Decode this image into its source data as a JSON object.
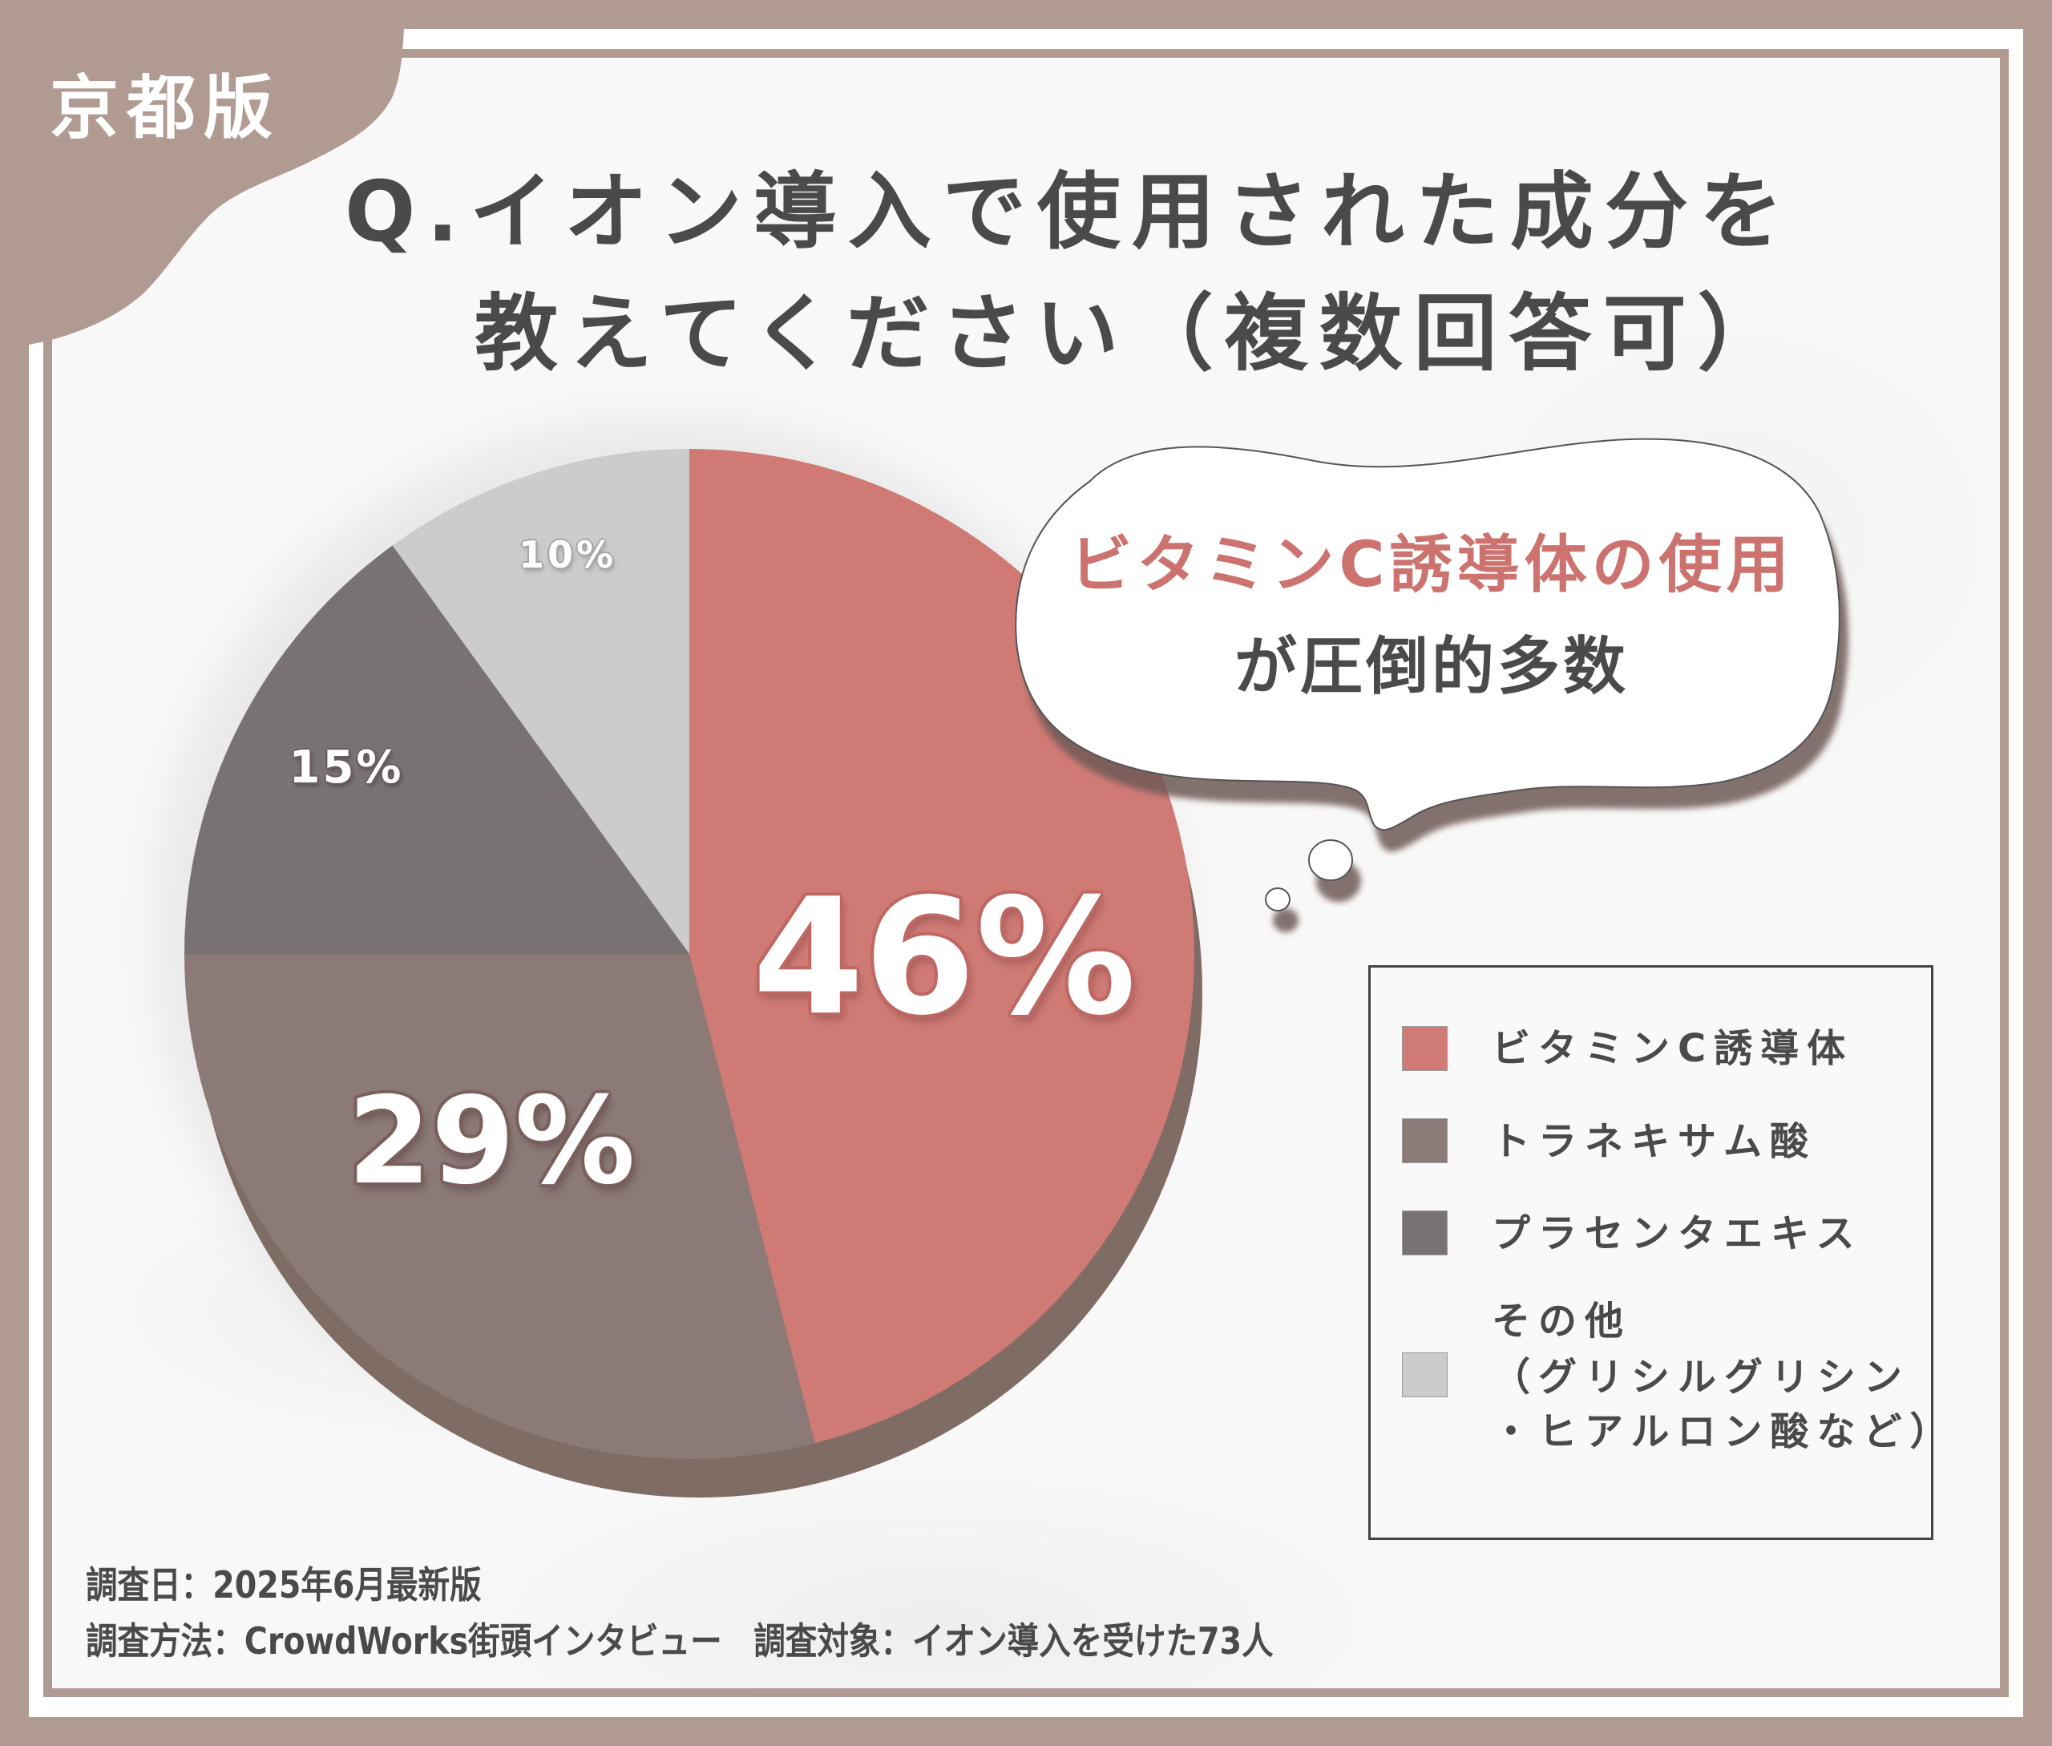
{
  "badge": {
    "label": "京都版"
  },
  "title": {
    "line1": "Q.イオン導入で使用された成分を",
    "line2": "教えてください（複数回答可）"
  },
  "callout": {
    "line1": "ビタミンC誘導体の使用",
    "line2": "が圧倒的多数"
  },
  "colors": {
    "frame": "#B09A92",
    "vitamin_c": "#CF7A75",
    "tranexamic": "#8C7A77",
    "placenta": "#787372",
    "other": "#CCCCCC",
    "accent_text": "#CC7370",
    "body_text": "#4A4A4A"
  },
  "legend": {
    "items": [
      {
        "label": "ビタミンC誘導体",
        "color": "#CF7A75"
      },
      {
        "label": "トラネキサム酸",
        "color": "#8C7A77"
      },
      {
        "label": "プラセンタエキス",
        "color": "#787372"
      },
      {
        "label_lines": [
          "その他",
          "（グリシルグリシン",
          "・ヒアルロン酸など）"
        ],
        "color": "#CCCCCC"
      }
    ]
  },
  "slice_labels": {
    "vitamin_c": "46%",
    "tranexamic": "29%",
    "placenta": "15%",
    "other": "10%"
  },
  "footer": {
    "line1": "調査日：2025年6月最新版",
    "line2": "調査方法：CrowdWorks街頭インタビュー　調査対象：イオン導入を受けた73人"
  },
  "chart_data": {
    "type": "pie",
    "title": "Q.イオン導入で使用された成分を教えてください（複数回答可）",
    "categories": [
      "ビタミンC誘導体",
      "トラネキサム酸",
      "プラセンタエキス",
      "その他（グリシルグリシン・ヒアルロン酸など）"
    ],
    "values": [
      46,
      29,
      15,
      10
    ],
    "unit": "%",
    "colors": [
      "#CF7A75",
      "#8C7A77",
      "#787372",
      "#CCCCCC"
    ],
    "start_angle": "12 o'clock, clockwise",
    "legend_position": "right",
    "annotation": "ビタミンC誘導体の使用が圧倒的多数",
    "badge": "京都版",
    "sample_size": 73
  }
}
